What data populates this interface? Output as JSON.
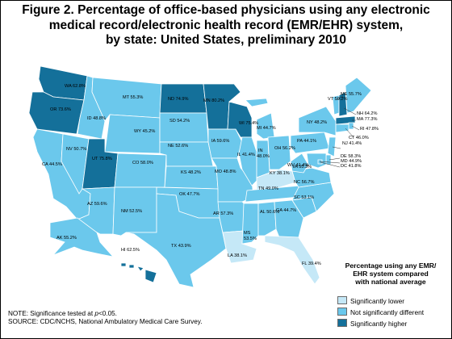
{
  "title": {
    "line1": "Figure 2. Percentage of office-based physicians using any electronic",
    "line2": "medical record/electronic health record (EMR/EHR) system,",
    "line3": "by state: United States, preliminary 2010"
  },
  "colors": {
    "lower": "#c5e8f7",
    "not_different": "#6bc8ec",
    "higher": "#14709a",
    "border": "#ffffff"
  },
  "legend": {
    "title_line1": "Percentage using any EMR/",
    "title_line2": "EHR system compared",
    "title_line3": "with national average",
    "items": [
      {
        "label": "Significantly lower",
        "color": "#c5e8f7"
      },
      {
        "label": "Not significantly different",
        "color": "#6bc8ec"
      },
      {
        "label": "Significantly higher",
        "color": "#14709a"
      }
    ]
  },
  "notes": {
    "significance_prefix": "NOTE: Significance tested at ",
    "significance_p": "p",
    "significance_suffix": "<0.05.",
    "source": "SOURCE: CDC/NCHS, National Ambulatory Medical Care Survey."
  },
  "states": [
    {
      "abbr": "WA",
      "value": "62.8%",
      "category": "higher"
    },
    {
      "abbr": "OR",
      "value": "73.6%",
      "category": "higher"
    },
    {
      "abbr": "CA",
      "value": "44.5%",
      "category": "not_different"
    },
    {
      "abbr": "NV",
      "value": "50.7%",
      "category": "not_different"
    },
    {
      "abbr": "ID",
      "value": "48.8%",
      "category": "not_different"
    },
    {
      "abbr": "MT",
      "value": "55.3%",
      "category": "not_different"
    },
    {
      "abbr": "WY",
      "value": "45.2%",
      "category": "not_different"
    },
    {
      "abbr": "UT",
      "value": "75.8%",
      "category": "higher"
    },
    {
      "abbr": "AZ",
      "value": "59.6%",
      "category": "not_different"
    },
    {
      "abbr": "CO",
      "value": "58.0%",
      "category": "not_different"
    },
    {
      "abbr": "NM",
      "value": "52.5%",
      "category": "not_different"
    },
    {
      "abbr": "ND",
      "value": "74.9%",
      "category": "higher"
    },
    {
      "abbr": "SD",
      "value": "54.2%",
      "category": "not_different"
    },
    {
      "abbr": "NE",
      "value": "52.6%",
      "category": "not_different"
    },
    {
      "abbr": "KS",
      "value": "48.2%",
      "category": "not_different"
    },
    {
      "abbr": "OK",
      "value": "47.7%",
      "category": "not_different"
    },
    {
      "abbr": "TX",
      "value": "43.9%",
      "category": "not_different"
    },
    {
      "abbr": "MN",
      "value": "80.2%",
      "category": "higher"
    },
    {
      "abbr": "IA",
      "value": "59.6%",
      "category": "not_different"
    },
    {
      "abbr": "MO",
      "value": "48.8%",
      "category": "not_different"
    },
    {
      "abbr": "AR",
      "value": "57.3%",
      "category": "not_different"
    },
    {
      "abbr": "LA",
      "value": "38.1%",
      "category": "lower"
    },
    {
      "abbr": "WI",
      "value": "75.4%",
      "category": "higher"
    },
    {
      "abbr": "IL",
      "value": "41.4%",
      "category": "not_different"
    },
    {
      "abbr": "MI",
      "value": "44.7%",
      "category": "not_different"
    },
    {
      "abbr": "IN",
      "value": "48.0%",
      "category": "not_different"
    },
    {
      "abbr": "OH",
      "value": "56.2%",
      "category": "not_different"
    },
    {
      "abbr": "KY",
      "value": "38.1%",
      "category": "lower"
    },
    {
      "abbr": "TN",
      "value": "49.0%",
      "category": "not_different"
    },
    {
      "abbr": "MS",
      "value": "53.5%",
      "category": "not_different"
    },
    {
      "abbr": "AL",
      "value": "50.6%",
      "category": "not_different"
    },
    {
      "abbr": "GA",
      "value": "44.7%",
      "category": "not_different"
    },
    {
      "abbr": "FL",
      "value": "39.4%",
      "category": "lower"
    },
    {
      "abbr": "SC",
      "value": "53.1%",
      "category": "not_different"
    },
    {
      "abbr": "NC",
      "value": "56.7%",
      "category": "not_different"
    },
    {
      "abbr": "VA",
      "value": "55.3%",
      "category": "not_different"
    },
    {
      "abbr": "WV",
      "value": "41.4%",
      "category": "not_different"
    },
    {
      "abbr": "PA",
      "value": "44.1%",
      "category": "not_different"
    },
    {
      "abbr": "NY",
      "value": "48.2%",
      "category": "not_different"
    },
    {
      "abbr": "VT",
      "value": "59.2%",
      "category": "not_different"
    },
    {
      "abbr": "ME",
      "value": "55.7%",
      "category": "not_different"
    },
    {
      "abbr": "NH",
      "value": "64.2%",
      "category": "higher"
    },
    {
      "abbr": "MA",
      "value": "77.3%",
      "category": "higher"
    },
    {
      "abbr": "RI",
      "value": "47.8%",
      "category": "not_different"
    },
    {
      "abbr": "CT",
      "value": "46.0%",
      "category": "not_different"
    },
    {
      "abbr": "NJ",
      "value": "41.4%",
      "category": "not_different"
    },
    {
      "abbr": "DE",
      "value": "58.3%",
      "category": "not_different"
    },
    {
      "abbr": "MD",
      "value": "44.9%",
      "category": "not_different"
    },
    {
      "abbr": "DC",
      "value": "41.8%",
      "category": "not_different"
    },
    {
      "abbr": "AK",
      "value": "55.2%",
      "category": "not_different"
    },
    {
      "abbr": "HI",
      "value": "62.5%",
      "category": "higher"
    }
  ]
}
